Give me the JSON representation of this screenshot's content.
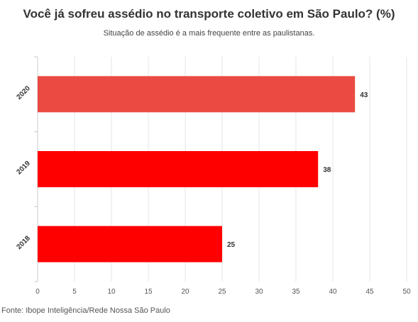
{
  "chart_data": {
    "type": "bar",
    "orientation": "horizontal",
    "title": "Você já sofreu assédio no transporte coletivo em São Paulo? (%)",
    "subtitle": "Situação de assédio é a mais frequente entre as paulistanas.",
    "categories": [
      "2020",
      "2019",
      "2018"
    ],
    "values": [
      43,
      38,
      25
    ],
    "data_labels": [
      "43",
      "38",
      "25"
    ],
    "bar_colors": [
      "#ea4a42",
      "#ff0000",
      "#ff0000"
    ],
    "xlim": [
      0,
      50
    ],
    "x_ticks": [
      "0",
      "5",
      "10",
      "15",
      "20",
      "25",
      "30",
      "35",
      "40",
      "45",
      "50"
    ],
    "grid": "vertical",
    "legend": "none"
  },
  "source": "Fonte: Ibope Inteligência/Rede Nossa São Paulo"
}
